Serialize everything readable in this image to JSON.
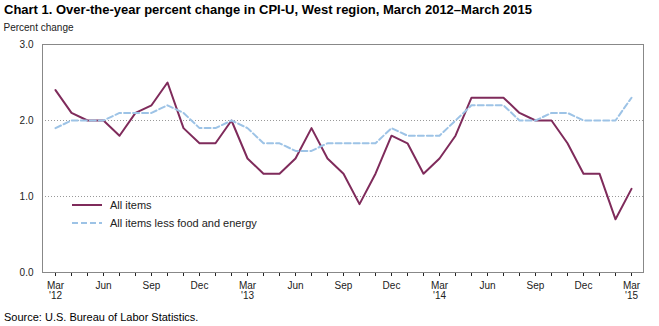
{
  "chart_data": {
    "type": "line",
    "title": "Chart 1. Over-the-year percent change in CPI-U, West region, March 2012–March 2015",
    "y_label": "Percent change",
    "source": "Source: U.S. Bureau of Labor Statistics.",
    "categories": [
      "Mar\n'12",
      null,
      null,
      "Jun",
      null,
      null,
      "Sep",
      null,
      null,
      "Dec",
      null,
      null,
      "Mar\n'13",
      null,
      null,
      "Jun",
      null,
      null,
      "Sep",
      null,
      null,
      "Dec",
      null,
      null,
      "Mar\n'14",
      null,
      null,
      "Jun",
      null,
      null,
      "Sep",
      null,
      null,
      "Dec",
      null,
      null,
      "Mar\n'15"
    ],
    "series": [
      {
        "name": "All items",
        "color": "#7f2b5b",
        "line_style": "solid",
        "values": [
          2.4,
          2.1,
          2.0,
          2.0,
          1.8,
          2.1,
          2.2,
          2.5,
          1.9,
          1.7,
          1.7,
          2.0,
          1.5,
          1.3,
          1.3,
          1.5,
          1.9,
          1.5,
          1.3,
          0.9,
          1.3,
          1.8,
          1.7,
          1.3,
          1.5,
          1.8,
          2.3,
          2.3,
          2.3,
          2.1,
          2.0,
          2.0,
          1.7,
          1.3,
          1.3,
          0.7,
          1.1
        ]
      },
      {
        "name": "All items less food and energy",
        "color": "#9dc3e6",
        "line_style": "dashed",
        "values": [
          1.9,
          2.0,
          2.0,
          2.0,
          2.1,
          2.1,
          2.1,
          2.2,
          2.1,
          1.9,
          1.9,
          2.0,
          1.9,
          1.7,
          1.7,
          1.6,
          1.6,
          1.7,
          1.7,
          1.7,
          1.7,
          1.9,
          1.8,
          1.8,
          1.8,
          2.0,
          2.2,
          2.2,
          2.2,
          2.0,
          2.0,
          2.1,
          2.1,
          2.0,
          2.0,
          2.0,
          2.3
        ]
      }
    ],
    "ylim": [
      0,
      3
    ],
    "yticks": [
      {
        "value": 0,
        "label": "0.0"
      },
      {
        "value": 1,
        "label": "1.0"
      },
      {
        "value": 2,
        "label": "2.0"
      },
      {
        "value": 3,
        "label": "3.0"
      }
    ],
    "grid": true,
    "legend": "lower left"
  }
}
